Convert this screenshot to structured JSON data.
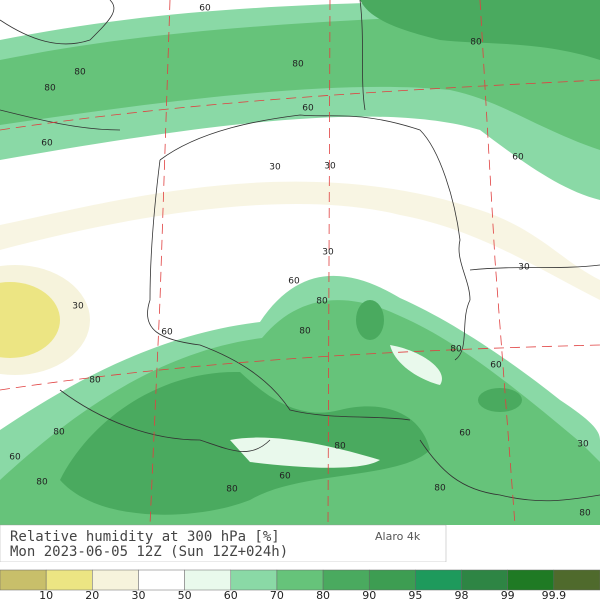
{
  "title": "Relative humidity at 300 hPa [%]",
  "subtitle": "Mon 2023-06-05 12Z (Sun 12Z+024h)",
  "model": "Alaro 4k",
  "colorbar": {
    "labels": [
      "10",
      "20",
      "30",
      "50",
      "60",
      "70",
      "80",
      "90",
      "95",
      "98",
      "99",
      "99.9"
    ],
    "colors": [
      "#c8bf6a",
      "#ece583",
      "#f6f3dc",
      "#ffffff",
      "#e9f9ec",
      "#8ad9a6",
      "#66c37a",
      "#4aaa5f",
      "#3d9d52",
      "#1e9a5c",
      "#2e8544",
      "#1f7a24",
      "#4f6a2c"
    ]
  },
  "contour_labels": [
    "60",
    "80",
    "80",
    "60",
    "80",
    "80",
    "60",
    "30",
    "30",
    "60",
    "30",
    "30",
    "60",
    "80",
    "30",
    "60",
    "80",
    "80",
    "60",
    "80",
    "80",
    "60",
    "80",
    "60",
    "30",
    "80",
    "60",
    "80",
    "80",
    "80"
  ]
}
